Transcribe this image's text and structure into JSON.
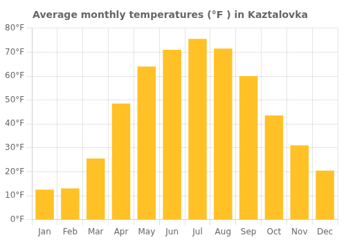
{
  "chart_data": {
    "type": "bar",
    "title": "Average monthly temperatures (°F ) in Kaztalovka",
    "categories": [
      "Jan",
      "Feb",
      "Mar",
      "Apr",
      "May",
      "Jun",
      "Jul",
      "Aug",
      "Sep",
      "Oct",
      "Nov",
      "Dec"
    ],
    "values": [
      12.5,
      13.0,
      25.5,
      48.5,
      64.0,
      71.0,
      75.5,
      71.5,
      60.0,
      43.5,
      31.0,
      20.5
    ],
    "color": "#FFC125",
    "ylim": [
      0,
      80
    ],
    "yticks": [
      {
        "value": 0,
        "label": "0°F"
      },
      {
        "value": 10,
        "label": "10°F"
      },
      {
        "value": 20,
        "label": "20°F"
      },
      {
        "value": 30,
        "label": "30°F"
      },
      {
        "value": 40,
        "label": "40°F"
      },
      {
        "value": 50,
        "label": "50°F"
      },
      {
        "value": 60,
        "label": "60°F"
      },
      {
        "value": 70,
        "label": "70°F"
      },
      {
        "value": 80,
        "label": "80°F"
      }
    ],
    "grid": true
  }
}
